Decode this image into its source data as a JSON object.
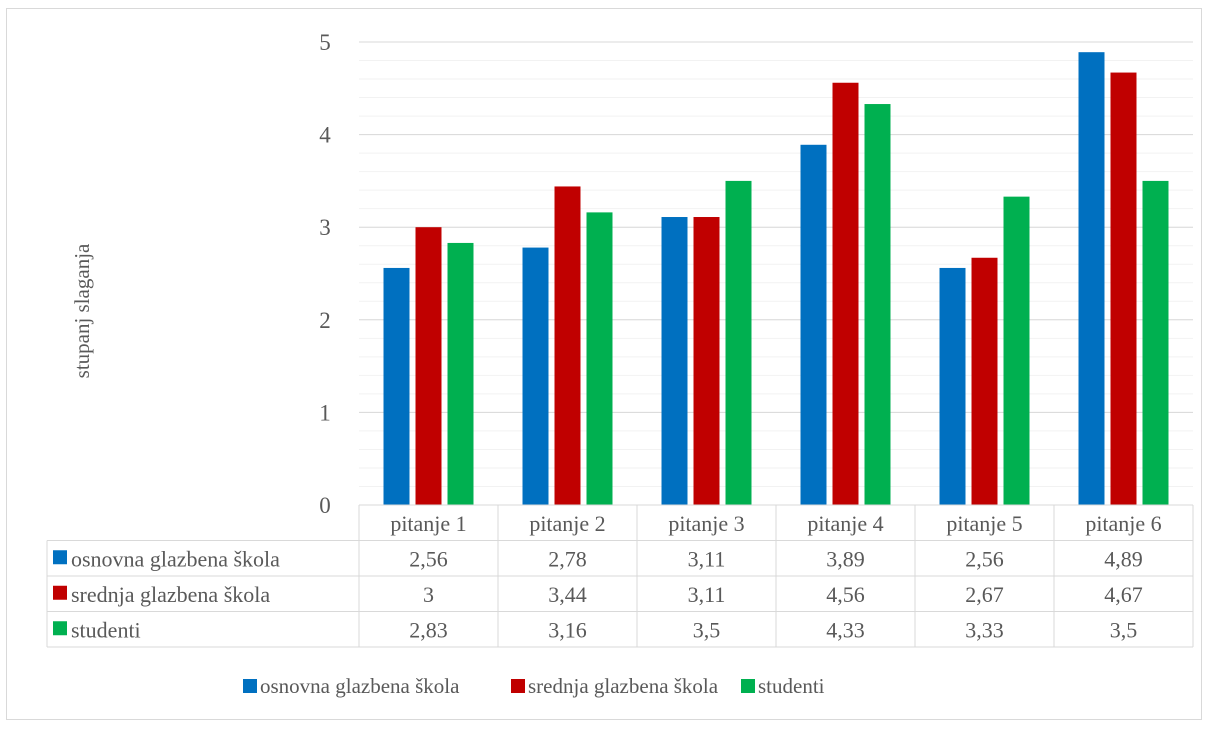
{
  "chart_data": {
    "type": "bar",
    "ylabel": "stupanj slaganja",
    "ylim": [
      0,
      5
    ],
    "y_ticks": [
      "0",
      "1",
      "2",
      "3",
      "4",
      "5"
    ],
    "y_major_step": 1,
    "y_minor_step": 0.2,
    "grid": true,
    "legend_position": "bottom",
    "has_data_table": true,
    "categories": [
      "pitanje 1",
      "pitanje 2",
      "pitanje 3",
      "pitanje 4",
      "pitanje 5",
      "pitanje 6"
    ],
    "series": [
      {
        "name": "osnovna glazbena škola",
        "color": "#0070C0",
        "values": [
          2.56,
          2.78,
          3.11,
          3.89,
          2.56,
          4.89
        ],
        "labels": [
          "2,56",
          "2,78",
          "3,11",
          "3,89",
          "2,56",
          "4,89"
        ]
      },
      {
        "name": "srednja glazbena škola",
        "color": "#C00000",
        "values": [
          3,
          3.44,
          3.11,
          4.56,
          2.67,
          4.67
        ],
        "labels": [
          "3",
          "3,44",
          "3,11",
          "4,56",
          "2,67",
          "4,67"
        ]
      },
      {
        "name": "studenti",
        "color": "#00B050",
        "values": [
          2.83,
          3.16,
          3.5,
          4.33,
          3.33,
          3.5
        ],
        "labels": [
          "2,83",
          "3,16",
          "3,5",
          "4,33",
          "3,33",
          "3,5"
        ]
      }
    ]
  }
}
